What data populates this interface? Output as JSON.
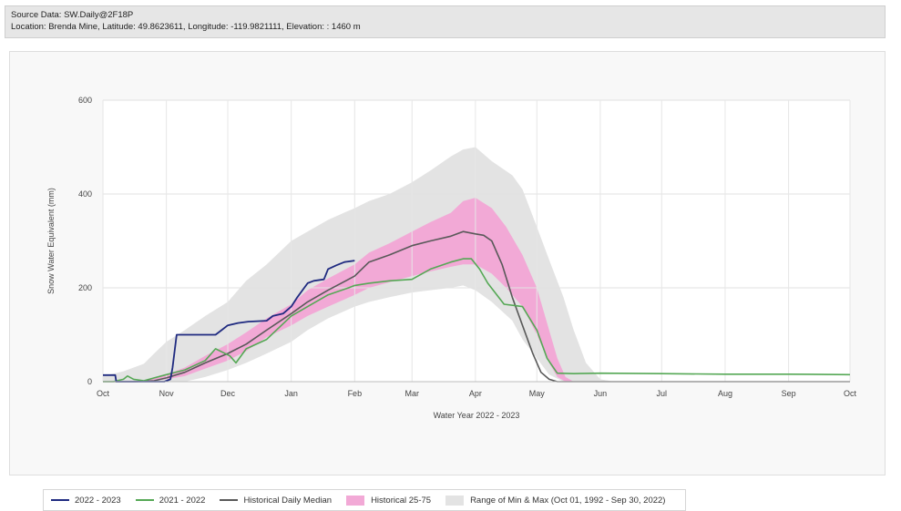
{
  "header": {
    "line1": "Source Data: SW.Daily@2F18P",
    "line2": "Location: Brenda Mine, Latitude: 49.8623611, Longitude: -119.9821111, Elevation: : 1460 m"
  },
  "legend": {
    "items": [
      {
        "label": "2022 - 2023",
        "color": "#1f2a80",
        "kind": "line"
      },
      {
        "label": "2021 - 2022",
        "color": "#55a855",
        "kind": "line"
      },
      {
        "label": "Historical Daily Median",
        "color": "#595959",
        "kind": "line"
      },
      {
        "label": "Historical 25-75",
        "color": "#f2a9d6",
        "kind": "band"
      },
      {
        "label": "Range of Min & Max (Oct 01, 1992 - Sep 30, 2022)",
        "color": "#e3e3e3",
        "kind": "band"
      }
    ]
  },
  "chart_data": {
    "type": "area",
    "xlabel": "Water Year 2022 - 2023",
    "ylabel": "Snow Water Equivalent (mm)",
    "ylim": [
      0,
      600
    ],
    "yticks": [
      0,
      200,
      400,
      600
    ],
    "xlim": [
      0,
      365
    ],
    "month_ticks": [
      {
        "label": "Oct",
        "day": 0
      },
      {
        "label": "Nov",
        "day": 31
      },
      {
        "label": "Dec",
        "day": 61
      },
      {
        "label": "Jan",
        "day": 92
      },
      {
        "label": "Feb",
        "day": 123
      },
      {
        "label": "Mar",
        "day": 151
      },
      {
        "label": "Apr",
        "day": 182
      },
      {
        "label": "May",
        "day": 212
      },
      {
        "label": "Jun",
        "day": 243
      },
      {
        "label": "Jul",
        "day": 273
      },
      {
        "label": "Aug",
        "day": 304
      },
      {
        "label": "Sep",
        "day": 335
      },
      {
        "label": "Oct",
        "day": 365
      }
    ],
    "grid": true,
    "legend_position": "bottom",
    "bands": [
      {
        "name": "Range of Min & Max (Oct 01, 1992 - Sep 30, 2022)",
        "color": "#e3e3e3",
        "x": [
          0,
          10,
          20,
          25,
          31,
          40,
          50,
          61,
          70,
          80,
          92,
          100,
          110,
          123,
          130,
          140,
          151,
          160,
          170,
          176,
          182,
          190,
          200,
          205,
          212,
          218,
          225,
          230,
          236,
          243,
          250,
          365
        ],
        "low": [
          0,
          0,
          0,
          0,
          0,
          0,
          10,
          25,
          40,
          60,
          85,
          110,
          135,
          160,
          170,
          180,
          190,
          195,
          200,
          205,
          195,
          170,
          130,
          90,
          50,
          15,
          0,
          0,
          0,
          0,
          0,
          0
        ],
        "high": [
          12,
          22,
          38,
          60,
          85,
          110,
          140,
          170,
          215,
          250,
          300,
          320,
          345,
          370,
          385,
          400,
          425,
          450,
          480,
          495,
          500,
          470,
          440,
          410,
          330,
          260,
          180,
          110,
          40,
          5,
          0,
          0
        ]
      },
      {
        "name": "Historical 25-75",
        "color": "#f2a9d6",
        "x": [
          0,
          20,
          31,
          40,
          50,
          61,
          70,
          80,
          92,
          100,
          110,
          123,
          130,
          140,
          151,
          160,
          170,
          176,
          182,
          190,
          197,
          205,
          212,
          218,
          222,
          226,
          230
        ],
        "low": [
          0,
          0,
          5,
          12,
          28,
          45,
          65,
          95,
          120,
          140,
          160,
          185,
          200,
          212,
          225,
          235,
          245,
          250,
          250,
          230,
          200,
          160,
          100,
          40,
          10,
          0,
          0
        ],
        "high": [
          0,
          2,
          15,
          30,
          55,
          80,
          105,
          135,
          165,
          195,
          220,
          250,
          275,
          295,
          320,
          340,
          360,
          385,
          392,
          370,
          330,
          270,
          200,
          110,
          50,
          10,
          0
        ]
      }
    ],
    "series": [
      {
        "name": "Historical Daily Median",
        "color": "#595959",
        "width": 1.6,
        "x": [
          0,
          15,
          25,
          31,
          40,
          50,
          61,
          70,
          80,
          92,
          100,
          110,
          123,
          130,
          140,
          151,
          160,
          170,
          176,
          182,
          186,
          190,
          195,
          200,
          205,
          210,
          214,
          218,
          222,
          227,
          240,
          365
        ],
        "y": [
          0,
          0,
          2,
          8,
          20,
          40,
          60,
          80,
          110,
          145,
          170,
          195,
          225,
          255,
          270,
          290,
          300,
          310,
          320,
          315,
          312,
          300,
          250,
          180,
          120,
          60,
          20,
          5,
          0,
          0,
          0,
          0
        ]
      },
      {
        "name": "2021 - 2022",
        "color": "#55a855",
        "width": 1.6,
        "x": [
          0,
          5,
          10,
          12,
          15,
          20,
          25,
          31,
          40,
          50,
          55,
          62,
          65,
          70,
          80,
          92,
          100,
          110,
          120,
          123,
          130,
          140,
          151,
          160,
          170,
          176,
          180,
          184,
          188,
          196,
          205,
          212,
          217,
          222,
          230,
          243,
          273,
          304,
          335,
          365
        ],
        "y": [
          0,
          0,
          5,
          12,
          5,
          2,
          8,
          15,
          25,
          45,
          70,
          55,
          40,
          70,
          90,
          140,
          160,
          185,
          200,
          205,
          210,
          215,
          218,
          240,
          255,
          262,
          262,
          240,
          210,
          165,
          160,
          110,
          50,
          18,
          17,
          18,
          17,
          16,
          16,
          15
        ]
      },
      {
        "name": "2022 - 2023",
        "color": "#1f2a80",
        "width": 1.8,
        "x": [
          0,
          6,
          6.5,
          10,
          30,
          33,
          34,
          36,
          45,
          55,
          58,
          61,
          66,
          71,
          80,
          83,
          88,
          92,
          95,
          100,
          103,
          108,
          110,
          114,
          118,
          123
        ],
        "y": [
          14,
          14,
          0,
          0,
          0,
          5,
          30,
          100,
          100,
          100,
          110,
          120,
          125,
          128,
          130,
          140,
          145,
          160,
          180,
          210,
          215,
          218,
          240,
          248,
          255,
          258
        ]
      }
    ]
  }
}
